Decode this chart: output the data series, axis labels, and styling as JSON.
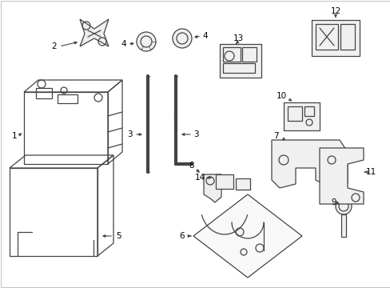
{
  "bg_color": "#ffffff",
  "line_color": "#444444",
  "label_color": "#000000",
  "lw": 0.9,
  "fs": 7.5
}
